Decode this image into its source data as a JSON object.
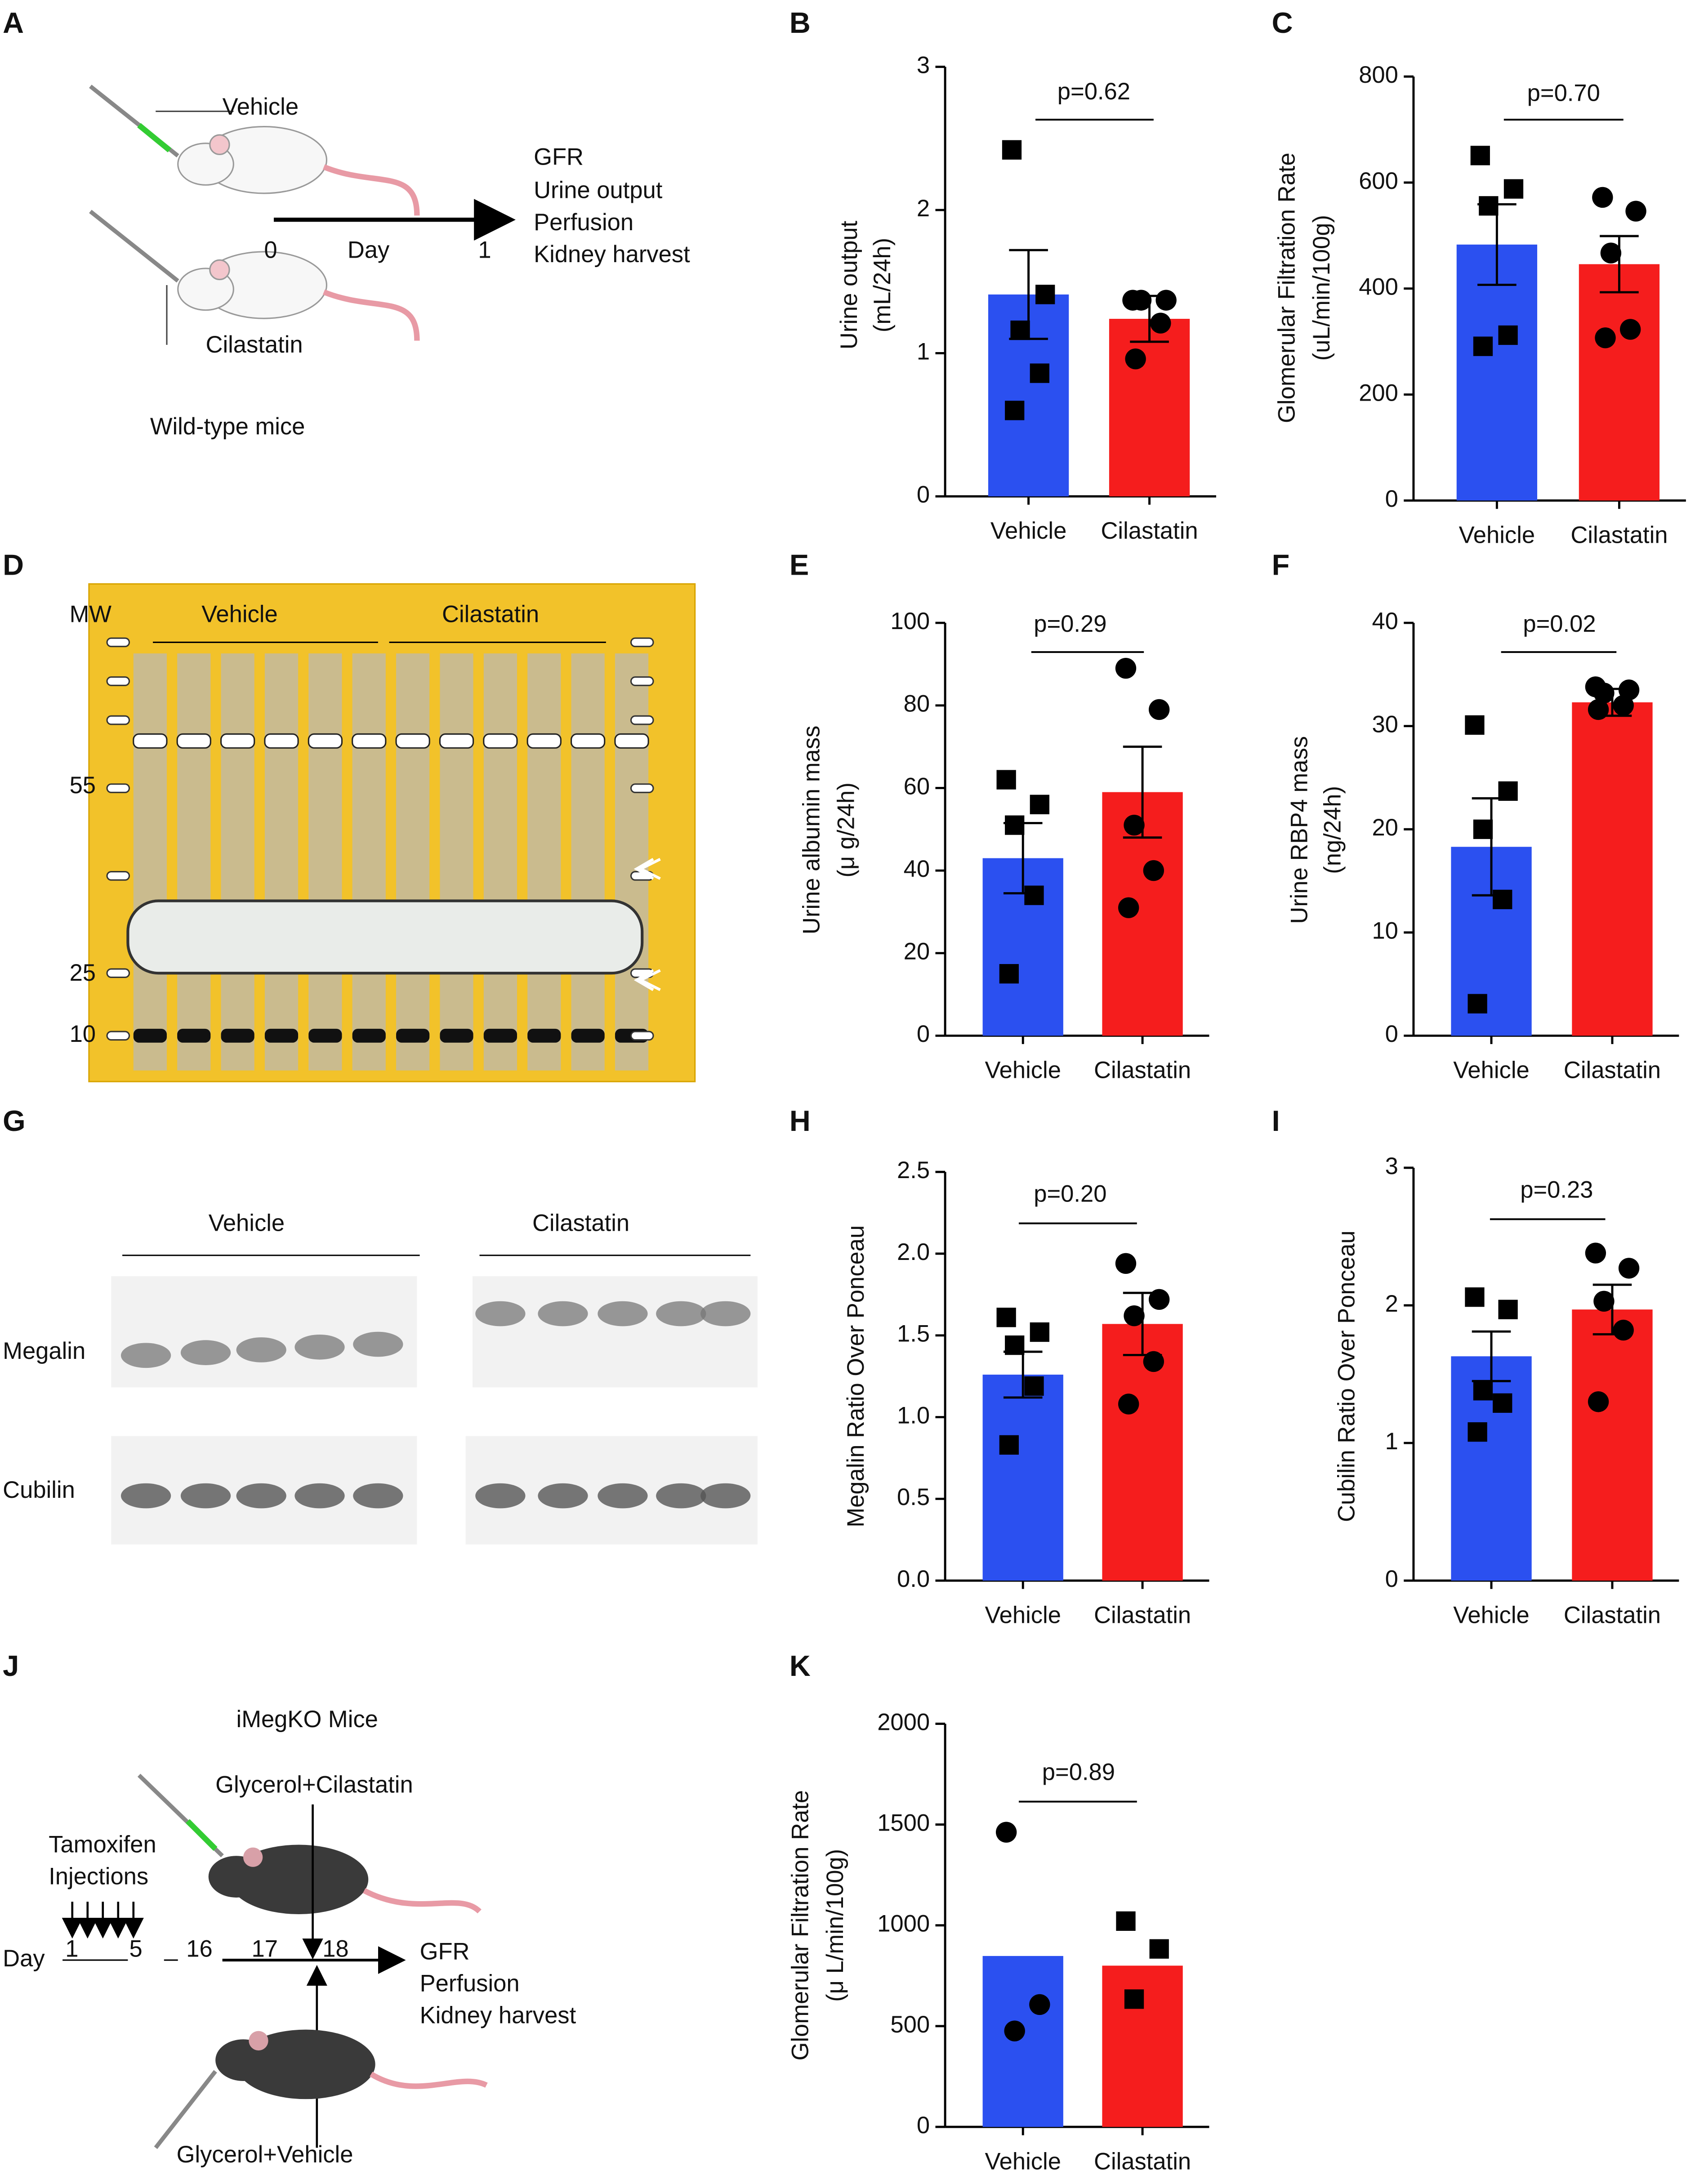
{
  "chart_data": [
    {
      "type": "bar",
      "panel": "B",
      "ylabel": [
        "Urine output",
        "(mL/24h)"
      ],
      "categories": [
        "Vehicle",
        "Cilastatin"
      ],
      "colors": [
        "#2b50f0",
        "#f51d1d"
      ],
      "values": [
        1.41,
        1.24
      ],
      "errors": [
        0.31,
        0.16
      ],
      "points": [
        [
          2.42,
          1.41,
          1.16,
          0.86,
          0.6
        ],
        [
          1.37,
          1.37,
          1.37,
          1.21,
          0.96
        ]
      ],
      "markers": [
        "square",
        "circle"
      ],
      "annotation": "p=0.62",
      "ylim": [
        0,
        3
      ],
      "yticks": [
        0,
        1,
        2,
        3
      ]
    },
    {
      "type": "bar",
      "panel": "C",
      "ylabel": [
        "Glomerular Filtration Rate",
        "(uL/min/100g)"
      ],
      "categories": [
        "Vehicle",
        "Cilastatin"
      ],
      "colors": [
        "#2b50f0",
        "#f51d1d"
      ],
      "values": [
        483,
        446
      ],
      "errors": [
        76,
        53
      ],
      "points": [
        [
          651,
          588,
          556,
          312,
          291
        ],
        [
          572,
          546,
          467,
          323,
          307
        ]
      ],
      "markers": [
        "square",
        "circle"
      ],
      "annotation": "p=0.70",
      "ylim": [
        0,
        800
      ],
      "yticks": [
        0,
        200,
        400,
        600,
        800
      ]
    },
    {
      "type": "bar",
      "panel": "E",
      "ylabel": [
        "Urine albumin mass",
        "(μ g/24h)"
      ],
      "categories": [
        "Vehicle",
        "Cilastatin"
      ],
      "colors": [
        "#2b50f0",
        "#f51d1d"
      ],
      "values": [
        43,
        59
      ],
      "errors": [
        8.5,
        11
      ],
      "points": [
        [
          62,
          56,
          51,
          34,
          15
        ],
        [
          89,
          79,
          51,
          40,
          31
        ]
      ],
      "markers": [
        "square",
        "circle"
      ],
      "annotation": "p=0.29",
      "ylim": [
        0,
        100
      ],
      "yticks": [
        0,
        20,
        40,
        60,
        80,
        100
      ]
    },
    {
      "type": "bar",
      "panel": "F",
      "ylabel": [
        "Urine RBP4 mass",
        "(ng/24h)"
      ],
      "categories": [
        "Vehicle",
        "Cilastatin"
      ],
      "colors": [
        "#2b50f0",
        "#f51d1d"
      ],
      "values": [
        18.3,
        32.3
      ],
      "errors": [
        4.7,
        1.3
      ],
      "points": [
        [
          30.1,
          23.7,
          20,
          13.2,
          3.1
        ],
        [
          33.8,
          33.5,
          33.2,
          32,
          31.6
        ]
      ],
      "markers": [
        "square",
        "circle"
      ],
      "annotation": "p=0.02",
      "ylim": [
        0,
        40
      ],
      "yticks": [
        0,
        10,
        20,
        30,
        40
      ]
    },
    {
      "type": "bar",
      "panel": "H",
      "ylabel": [
        "Megalin Ratio Over Ponceau"
      ],
      "categories": [
        "Vehicle",
        "Cilastatin"
      ],
      "colors": [
        "#2b50f0",
        "#f51d1d"
      ],
      "values": [
        1.26,
        1.57
      ],
      "errors": [
        0.14,
        0.19
      ],
      "points": [
        [
          1.61,
          1.52,
          1.44,
          1.19,
          0.83
        ],
        [
          1.94,
          1.72,
          1.62,
          1.34,
          1.08
        ]
      ],
      "markers": [
        "square",
        "circle"
      ],
      "annotation": "p=0.20",
      "ylim": [
        0,
        2.5
      ],
      "yticks": [
        {
          "value": 0,
          "label": "0.0"
        },
        0.5,
        {
          "value": 1,
          "label": "1.0"
        },
        1.5,
        {
          "value": 2,
          "label": "2.0"
        },
        2.5
      ]
    },
    {
      "type": "bar",
      "panel": "I",
      "ylabel": [
        "Cubilin Ratio Over Ponceau"
      ],
      "categories": [
        "Vehicle",
        "Cilastatin"
      ],
      "colors": [
        "#2b50f0",
        "#f51d1d"
      ],
      "values": [
        1.63,
        1.97
      ],
      "errors": [
        0.18,
        0.18
      ],
      "points": [
        [
          2.06,
          1.97,
          1.38,
          1.29,
          1.08
        ],
        [
          2.38,
          2.27,
          2.03,
          1.82,
          1.3
        ]
      ],
      "markers": [
        "square",
        "circle"
      ],
      "annotation": "p=0.23",
      "ylim": [
        0,
        3
      ],
      "yticks": [
        0,
        1,
        2,
        3
      ]
    },
    {
      "type": "bar",
      "panel": "K",
      "ylabel": [
        "Glomerular Filtration Rate",
        "(μ L/min/100g)"
      ],
      "categories": [
        "Vehicle",
        "Cilastatin"
      ],
      "colors": [
        "#2b50f0",
        "#f51d1d"
      ],
      "values": [
        848,
        800
      ],
      "points": [
        [
          1462,
          607,
          476
        ],
        [
          1021,
          883,
          634
        ]
      ],
      "markers": [
        "circle",
        "square"
      ],
      "annotation": "p=0.89",
      "ylim": [
        0,
        2000
      ],
      "yticks": [
        0,
        500,
        1000,
        1500,
        2000
      ]
    }
  ],
  "figure": {
    "panel_a": {
      "label": "A",
      "vehicle": "Vehicle",
      "cilastatin": "Cilastatin",
      "readouts": [
        "GFR",
        "Urine output",
        "Perfusion",
        "Kidney harvest"
      ],
      "day_label": "Day",
      "days": [
        "0",
        "1"
      ],
      "caption": "Wild-type mice"
    },
    "panel_d": {
      "label": "D",
      "mw": "MW",
      "groups": [
        "Vehicle",
        "Cilastatin"
      ],
      "markers": [
        "55",
        "25",
        "10"
      ]
    },
    "panel_g": {
      "label": "G",
      "groups": [
        "Vehicle",
        "Cilastatin"
      ],
      "rows": [
        "Megalin",
        "Cubilin"
      ]
    },
    "panel_j": {
      "label": "J",
      "title": "iMegKO Mice",
      "top_treatment": "Glycerol+Cilastatin",
      "injections": [
        "Tamoxifen",
        "Injections"
      ],
      "day_label": "Day",
      "days": [
        "1",
        "5",
        "16",
        "17",
        "18"
      ],
      "readouts": [
        "GFR",
        "Perfusion",
        "Kidney harvest"
      ],
      "bottom_treatment": "Glycerol+Vehicle"
    }
  }
}
